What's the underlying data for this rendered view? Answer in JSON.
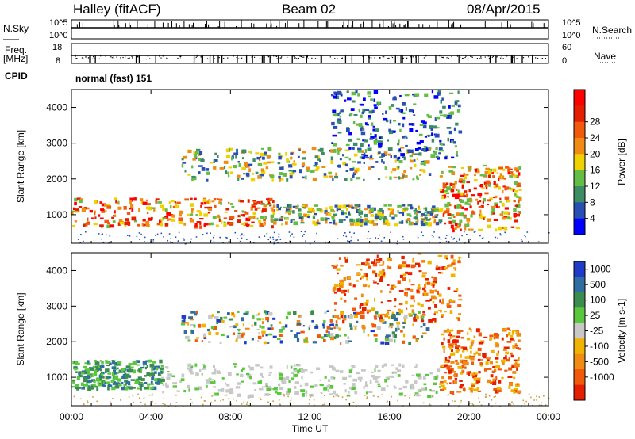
{
  "header": {
    "station": "Halley (fitACF)",
    "beam": "Beam 02",
    "date": "08/Apr/2015"
  },
  "strip_labels": {
    "nsky": "N.Sky",
    "nsky_top": "10^5",
    "nsky_bottom": "10^0",
    "nsearch": "N.Search",
    "nsearch_top": "10^5",
    "nsearch_bottom": "10^0",
    "freq": "Freq.",
    "freq_unit": "[MHz]",
    "freq_top": "18",
    "freq_bottom": "8",
    "nave": "Nave",
    "nave_top": "60",
    "nave_bottom": "0",
    "cpid": "CPID",
    "cpid_value": "normal (fast) 151"
  },
  "chart_data": [
    {
      "type": "heatmap",
      "panel": "power",
      "ylabel": "Slant Range [km]",
      "ylim": [
        200,
        4500
      ],
      "y_ticks": [
        "1000",
        "2000",
        "3000",
        "4000"
      ],
      "x_ticks": [
        "00:00",
        "04:00",
        "08:00",
        "12:00",
        "16:00",
        "20:00",
        "00:00"
      ],
      "xlim_hours": [
        0,
        24
      ],
      "colorbar": {
        "label": "Power [dB]",
        "ticks": [
          "4",
          "8",
          "12",
          "16",
          "20",
          "24",
          "28"
        ],
        "colors": [
          "#0000ff",
          "#2850b4",
          "#3c8c64",
          "#64be46",
          "#f0d200",
          "#f08c14",
          "#f05a0a",
          "#e61e00",
          "#ff0000"
        ]
      },
      "echo_bands": [
        {
          "t0": 0.0,
          "t1": 10.2,
          "r0": 700,
          "r1": 1500,
          "level": "high"
        },
        {
          "t0": 10.0,
          "t1": 18.5,
          "r0": 750,
          "r1": 1300,
          "level": "mid"
        },
        {
          "t0": 5.5,
          "t1": 18.0,
          "r0": 2000,
          "r1": 2900,
          "level": "mid"
        },
        {
          "t0": 18.5,
          "t1": 22.5,
          "r0": 600,
          "r1": 2400,
          "level": "high"
        },
        {
          "t0": 13.0,
          "t1": 19.5,
          "r0": 2600,
          "r1": 4500,
          "level": "low"
        }
      ]
    },
    {
      "type": "heatmap",
      "panel": "velocity",
      "ylabel": "Slant Range [km]",
      "ylim": [
        200,
        4500
      ],
      "y_ticks": [
        "1000",
        "2000",
        "3000",
        "4000"
      ],
      "x_ticks": [
        "00:00",
        "04:00",
        "08:00",
        "12:00",
        "16:00",
        "20:00",
        "00:00"
      ],
      "xlabel": "Time UT",
      "xlim_hours": [
        0,
        24
      ],
      "colorbar": {
        "label": "Velocity [m s-1]",
        "ticks": [
          "1000",
          "500",
          "100",
          "25",
          "-25",
          "-100",
          "-500",
          "-1000"
        ],
        "colors": [
          "#1e3cc8",
          "#2f6ea0",
          "#3c8c50",
          "#5ac83c",
          "#c8c8c8",
          "#f0b400",
          "#f08c14",
          "#f05a0a",
          "#e61e00"
        ]
      },
      "echo_bands": [
        {
          "t0": 0.0,
          "t1": 4.5,
          "r0": 700,
          "r1": 1500,
          "vel": "positive"
        },
        {
          "t0": 4.5,
          "t1": 18.5,
          "r0": 500,
          "r1": 1400,
          "vel": "near-zero"
        },
        {
          "t0": 5.5,
          "t1": 18.0,
          "r0": 2000,
          "r1": 2900,
          "vel": "mixed"
        },
        {
          "t0": 18.5,
          "t1": 22.5,
          "r0": 600,
          "r1": 2400,
          "vel": "negative"
        },
        {
          "t0": 13.0,
          "t1": 19.5,
          "r0": 2600,
          "r1": 4500,
          "vel": "negative"
        }
      ]
    }
  ]
}
